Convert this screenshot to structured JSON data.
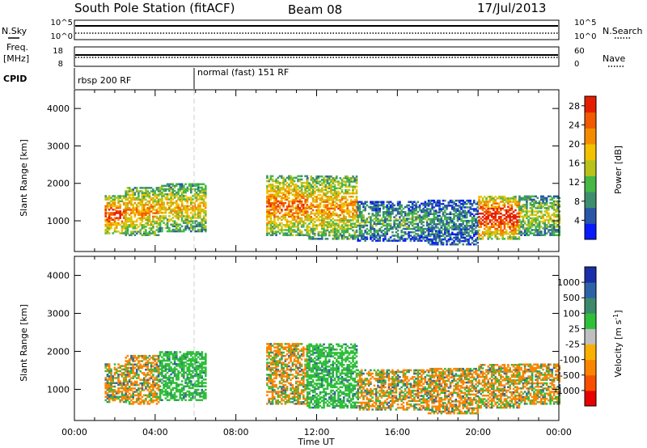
{
  "header": {
    "station": "South Pole Station (fitACF)",
    "beam": "Beam 08",
    "date": "17/Jul/2013"
  },
  "aux_panels": {
    "left_labels": {
      "nsky": "N.Sky",
      "freq_1": "Freq.",
      "freq_2": "[MHz]",
      "cpid": "CPID"
    },
    "right_labels": {
      "nsearch": "N.Search",
      "nave": "Nave"
    },
    "nsky_ticks": [
      "10^5",
      "10^0"
    ],
    "nsearch_ticks": [
      "10^5",
      "10^0"
    ],
    "freq_ticks": [
      "18",
      "8"
    ],
    "nave_ticks": [
      "60",
      "0"
    ],
    "cpid_segments": [
      "rbsp 200 RF",
      "normal (fast) 151 RF"
    ],
    "cpid_switch_hour": 6.0
  },
  "colors": {
    "power_scale": [
      "#0a1aff",
      "#2a55a8",
      "#3d8e6e",
      "#45b845",
      "#b8c21a",
      "#f2c200",
      "#f58c00",
      "#f05a00",
      "#e61e00"
    ],
    "velocity_scale": [
      "#e80000",
      "#f85000",
      "#fb8400",
      "#f9b000",
      "#bfbfbf",
      "#2fbf3a",
      "#3d8a6a",
      "#2e62a6",
      "#1a2ea8"
    ],
    "vertical_marker": "#cfcfcf"
  },
  "chart_data": [
    {
      "type": "heatmap",
      "panel": "power",
      "ylabel": "Slant Range [km]",
      "xlabel": "",
      "ylim": [
        180,
        4500
      ],
      "xlim": [
        0,
        24
      ],
      "y_ticks": [
        "1000",
        "2000",
        "3000",
        "4000"
      ],
      "colorbar_label": "Power [dB]",
      "colorbar_ticks": [
        "4",
        "8",
        "12",
        "16",
        "20",
        "24",
        "28"
      ],
      "colorbar_range": [
        0,
        30
      ],
      "echo_regions": [
        {
          "t0": 1.5,
          "t1": 2.5,
          "r0": 650,
          "r1": 1650,
          "power": 20
        },
        {
          "t0": 2.5,
          "t1": 4.2,
          "r0": 600,
          "r1": 1900,
          "power": 16
        },
        {
          "t0": 4.2,
          "t1": 6.5,
          "r0": 700,
          "r1": 2000,
          "power": 14
        },
        {
          "t0": 9.5,
          "t1": 11.5,
          "r0": 600,
          "r1": 2200,
          "power": 18
        },
        {
          "t0": 11.5,
          "t1": 14.0,
          "r0": 500,
          "r1": 2200,
          "power": 16
        },
        {
          "t0": 14.0,
          "t1": 17.5,
          "r0": 450,
          "r1": 1500,
          "power": 8
        },
        {
          "t0": 17.5,
          "t1": 20.0,
          "r0": 350,
          "r1": 1550,
          "power": 6
        },
        {
          "t0": 20.0,
          "t1": 22.0,
          "r0": 500,
          "r1": 1650,
          "power": 22
        },
        {
          "t0": 22.0,
          "t1": 24.0,
          "r0": 600,
          "r1": 1650,
          "power": 12
        }
      ]
    },
    {
      "type": "heatmap",
      "panel": "velocity",
      "ylabel": "Slant Range [km]",
      "xlabel": "Time UT",
      "ylim": [
        180,
        4500
      ],
      "xlim": [
        0,
        24
      ],
      "x_ticks": [
        "00:00",
        "04:00",
        "08:00",
        "12:00",
        "16:00",
        "20:00",
        "00:00"
      ],
      "y_ticks": [
        "1000",
        "2000",
        "3000",
        "4000"
      ],
      "colorbar_label": "Velocity [m s",
      "colorbar_label_sup": "-1",
      "colorbar_label_close": "]",
      "colorbar_ticks": [
        "1000",
        "500",
        "100",
        "25",
        "-25",
        "-100",
        "-500",
        "-1000"
      ],
      "echo_regions": [
        {
          "t0": 1.5,
          "t1": 2.5,
          "r0": 650,
          "r1": 1650,
          "velocity": -100
        },
        {
          "t0": 2.5,
          "t1": 4.2,
          "r0": 600,
          "r1": 1900,
          "velocity": -100
        },
        {
          "t0": 4.2,
          "t1": 6.5,
          "r0": 700,
          "r1": 2000,
          "velocity": 100
        },
        {
          "t0": 9.5,
          "t1": 11.5,
          "r0": 600,
          "r1": 2200,
          "velocity": -100
        },
        {
          "t0": 11.5,
          "t1": 14.0,
          "r0": 500,
          "r1": 2200,
          "velocity": 100
        },
        {
          "t0": 14.0,
          "t1": 17.5,
          "r0": 450,
          "r1": 1500,
          "velocity": -100
        },
        {
          "t0": 17.5,
          "t1": 20.0,
          "r0": 350,
          "r1": 1550,
          "velocity": -100
        },
        {
          "t0": 20.0,
          "t1": 22.0,
          "r0": 500,
          "r1": 1650,
          "velocity": -100
        },
        {
          "t0": 22.0,
          "t1": 24.0,
          "r0": 600,
          "r1": 1650,
          "velocity": -100
        }
      ]
    }
  ]
}
